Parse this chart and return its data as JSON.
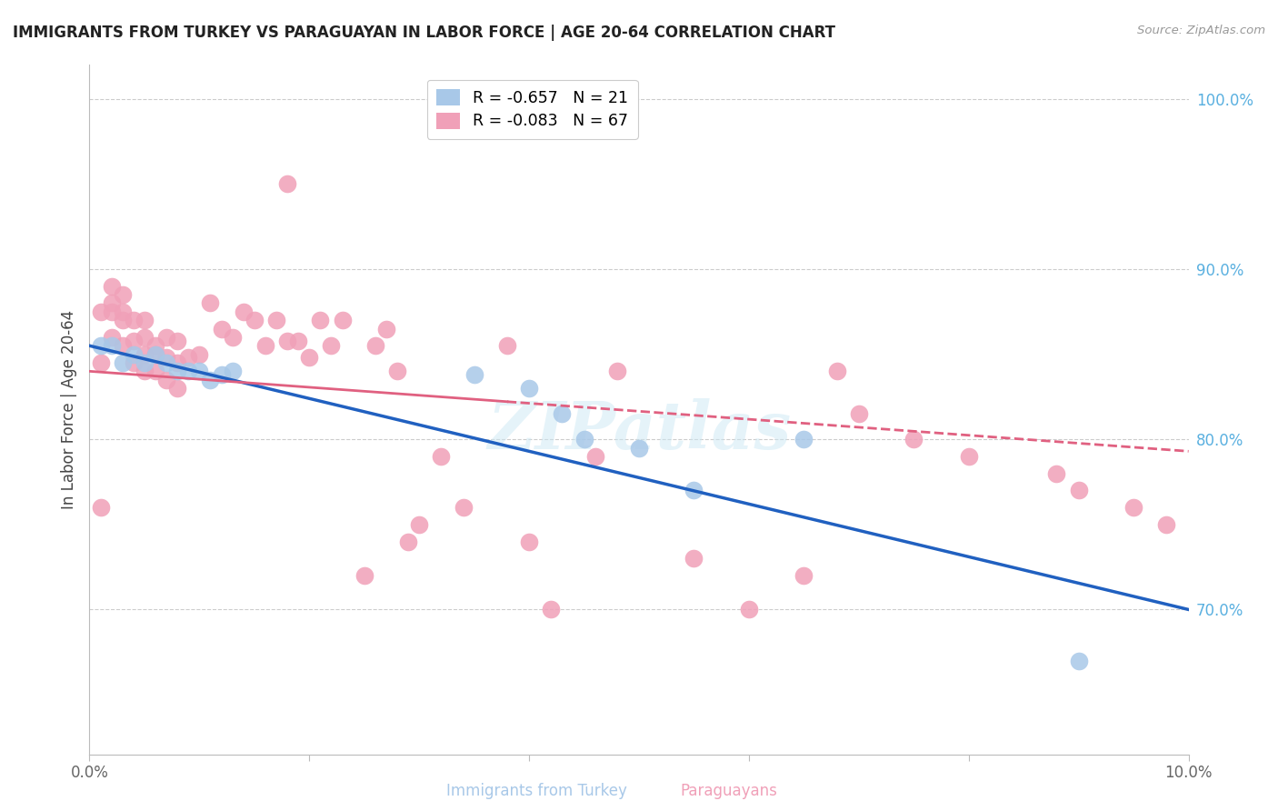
{
  "title": "IMMIGRANTS FROM TURKEY VS PARAGUAYAN IN LABOR FORCE | AGE 20-64 CORRELATION CHART",
  "source": "Source: ZipAtlas.com",
  "ylabel": "In Labor Force | Age 20-64",
  "xlim": [
    0.0,
    0.1
  ],
  "ylim": [
    0.615,
    1.02
  ],
  "xticks": [
    0.0,
    0.02,
    0.04,
    0.06,
    0.08,
    0.1
  ],
  "xticklabels": [
    "0.0%",
    "",
    "",
    "",
    "",
    "10.0%"
  ],
  "yticks_right": [
    0.7,
    0.8,
    0.9,
    1.0
  ],
  "ytick_labels_right": [
    "70.0%",
    "80.0%",
    "90.0%",
    "100.0%"
  ],
  "legend_turkey_R": "R = -0.657",
  "legend_turkey_N": "N = 21",
  "legend_para_R": "R = -0.083",
  "legend_para_N": "N = 67",
  "turkey_color": "#a8c8e8",
  "para_color": "#f0a0b8",
  "trend_turkey_color": "#2060c0",
  "trend_para_color": "#e06080",
  "watermark": "ZIPatlas",
  "turkey_x": [
    0.001,
    0.002,
    0.003,
    0.004,
    0.005,
    0.006,
    0.007,
    0.008,
    0.009,
    0.01,
    0.011,
    0.012,
    0.013,
    0.035,
    0.04,
    0.043,
    0.045,
    0.05,
    0.055,
    0.065,
    0.09
  ],
  "turkey_y": [
    0.855,
    0.855,
    0.845,
    0.85,
    0.845,
    0.85,
    0.845,
    0.84,
    0.84,
    0.84,
    0.835,
    0.838,
    0.84,
    0.838,
    0.83,
    0.815,
    0.8,
    0.795,
    0.77,
    0.8,
    0.67
  ],
  "para_x": [
    0.001,
    0.001,
    0.001,
    0.002,
    0.002,
    0.002,
    0.002,
    0.003,
    0.003,
    0.003,
    0.003,
    0.004,
    0.004,
    0.004,
    0.005,
    0.005,
    0.005,
    0.005,
    0.006,
    0.006,
    0.006,
    0.007,
    0.007,
    0.007,
    0.008,
    0.008,
    0.008,
    0.009,
    0.01,
    0.011,
    0.012,
    0.013,
    0.014,
    0.015,
    0.016,
    0.017,
    0.018,
    0.018,
    0.019,
    0.02,
    0.021,
    0.022,
    0.023,
    0.025,
    0.026,
    0.027,
    0.028,
    0.029,
    0.03,
    0.032,
    0.034,
    0.038,
    0.04,
    0.042,
    0.046,
    0.048,
    0.055,
    0.06,
    0.065,
    0.068,
    0.07,
    0.075,
    0.08,
    0.088,
    0.09,
    0.095,
    0.098
  ],
  "para_y": [
    0.76,
    0.845,
    0.875,
    0.86,
    0.875,
    0.88,
    0.89,
    0.855,
    0.87,
    0.875,
    0.885,
    0.845,
    0.858,
    0.87,
    0.84,
    0.85,
    0.86,
    0.87,
    0.84,
    0.85,
    0.855,
    0.835,
    0.848,
    0.86,
    0.83,
    0.845,
    0.858,
    0.848,
    0.85,
    0.88,
    0.865,
    0.86,
    0.875,
    0.87,
    0.855,
    0.87,
    0.858,
    0.95,
    0.858,
    0.848,
    0.87,
    0.855,
    0.87,
    0.72,
    0.855,
    0.865,
    0.84,
    0.74,
    0.75,
    0.79,
    0.76,
    0.855,
    0.74,
    0.7,
    0.79,
    0.84,
    0.73,
    0.7,
    0.72,
    0.84,
    0.815,
    0.8,
    0.79,
    0.78,
    0.77,
    0.76,
    0.75
  ],
  "turkey_trend_x0": 0.0,
  "turkey_trend_y0": 0.855,
  "turkey_trend_x1": 0.1,
  "turkey_trend_y1": 0.7,
  "para_trend_x0": 0.0,
  "para_trend_y0": 0.84,
  "para_trend_x1": 0.1,
  "para_trend_y1": 0.793,
  "para_trend_solid_end": 0.038,
  "grid_color": "#cccccc",
  "background_color": "#ffffff"
}
